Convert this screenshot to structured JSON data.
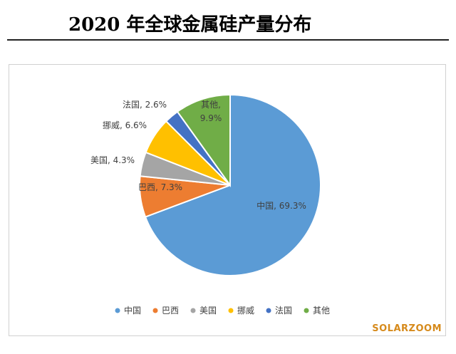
{
  "title": "2020 年全球金属硅产量分布",
  "watermark": "SOLARZOOM",
  "chart_data": {
    "type": "pie",
    "title": "",
    "start_angle_deg": 0,
    "direction": "clockwise",
    "slices": [
      {
        "name": "中国",
        "value": 69.3,
        "label": "中国, 69.3%",
        "color": "#5b9bd5",
        "label_placement": "inside"
      },
      {
        "name": "巴西",
        "value": 7.3,
        "label": "巴西, 7.3%",
        "color": "#ed7d31",
        "label_placement": "inside"
      },
      {
        "name": "美国",
        "value": 4.3,
        "label": "美国, 4.3%",
        "color": "#a5a5a5",
        "label_placement": "outside"
      },
      {
        "name": "挪威",
        "value": 6.6,
        "label": "挪威, 6.6%",
        "color": "#ffc000",
        "label_placement": "outside"
      },
      {
        "name": "法国",
        "value": 2.6,
        "label": "法国, 2.6%",
        "color": "#4472c4",
        "label_placement": "outside"
      },
      {
        "name": "其他",
        "value": 9.9,
        "label": "其他, 9.9%",
        "label_lines": [
          "其他,",
          "9.9%"
        ],
        "color": "#70ad47",
        "label_placement": "inside"
      }
    ],
    "legend": {
      "position": "bottom",
      "entries": [
        "中国",
        "巴西",
        "美国",
        "挪威",
        "法国",
        "其他"
      ]
    }
  }
}
